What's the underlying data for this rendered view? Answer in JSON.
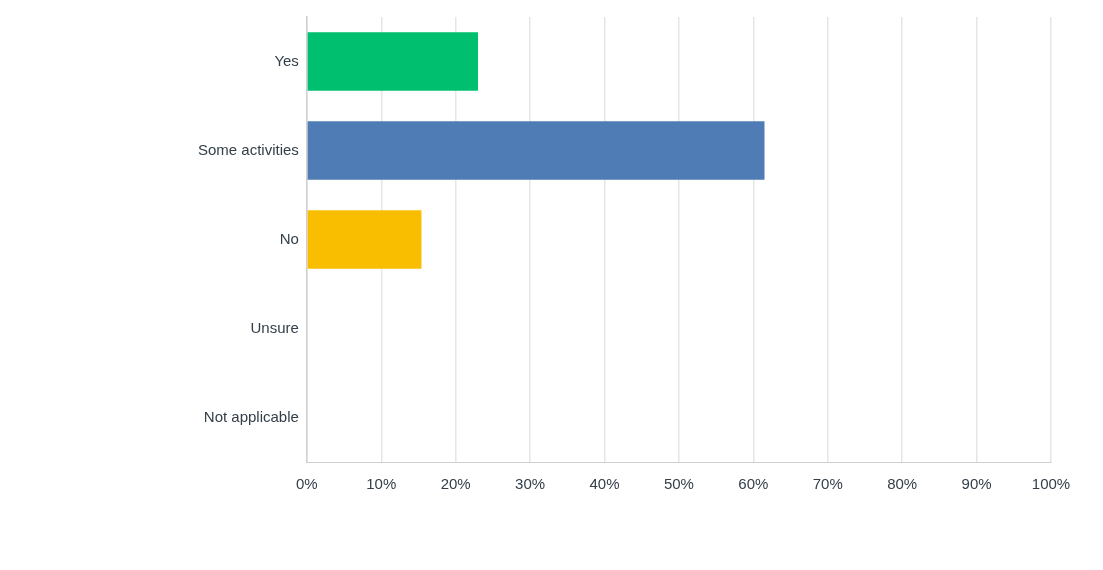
{
  "chart_data": {
    "type": "bar",
    "orientation": "horizontal",
    "categories": [
      "Yes",
      "Some activities",
      "No",
      "Unsure",
      "Not applicable"
    ],
    "values": [
      23,
      61.5,
      15.4,
      0,
      0
    ],
    "colors": [
      "#00bf6f",
      "#507cb6",
      "#f9be00",
      "#00bf6f",
      "#507cb6"
    ],
    "xlim": [
      0,
      100
    ],
    "xticks": [
      {
        "value": 0,
        "label": "0%"
      },
      {
        "value": 10,
        "label": "10%"
      },
      {
        "value": 20,
        "label": "20%"
      },
      {
        "value": 30,
        "label": "30%"
      },
      {
        "value": 40,
        "label": "40%"
      },
      {
        "value": 50,
        "label": "50%"
      },
      {
        "value": 60,
        "label": "60%"
      },
      {
        "value": 70,
        "label": "70%"
      },
      {
        "value": 80,
        "label": "80%"
      },
      {
        "value": 90,
        "label": "90%"
      },
      {
        "value": 100,
        "label": "100%"
      }
    ],
    "grid": "x",
    "legend": false
  }
}
